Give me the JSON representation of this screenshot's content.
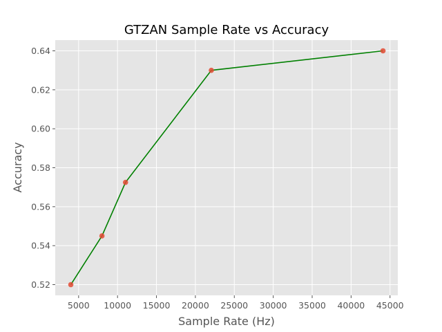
{
  "chart_data": {
    "type": "line",
    "title": "GTZAN Sample Rate vs Accuracy",
    "xlabel": "Sample Rate (Hz)",
    "ylabel": "Accuracy",
    "xlim": [
      2000,
      46000
    ],
    "ylim": [
      0.5145,
      0.6455
    ],
    "xticks": [
      5000,
      10000,
      15000,
      20000,
      25000,
      30000,
      35000,
      40000,
      45000
    ],
    "yticks": [
      0.52,
      0.54,
      0.56,
      0.58,
      0.6,
      0.62,
      0.64
    ],
    "ytick_labels": [
      "0.52",
      "0.54",
      "0.56",
      "0.58",
      "0.60",
      "0.62",
      "0.64"
    ],
    "grid": true,
    "series": [
      {
        "x": [
          4000,
          8000,
          11025,
          22050,
          44100
        ],
        "y": [
          0.52,
          0.545,
          0.5725,
          0.63,
          0.64
        ],
        "line_color": "#008000",
        "marker_color": "#E24A33"
      }
    ]
  }
}
